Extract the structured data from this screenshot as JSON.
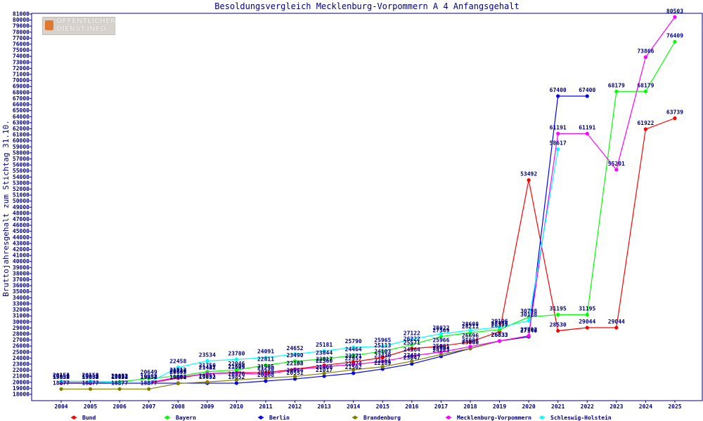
{
  "logo": {
    "line1": "ÖFFENTLICHER",
    "line2": "DIENST.INFO"
  },
  "chart_data": {
    "type": "line",
    "title": "Besoldungsvergleich Mecklenburg-Vorpommern A 4 Anfangsgehalt",
    "xlabel": "",
    "ylabel": "Bruttojahresgehalt zum Stichtag 31.10.",
    "categories": [
      "2004",
      "2005",
      "2006",
      "2007",
      "2008",
      "2009",
      "2010",
      "2011",
      "2012",
      "2013",
      "2014",
      "2015",
      "2016",
      "2017",
      "2018",
      "2019",
      "2020",
      "2021",
      "2022",
      "2023",
      "2024",
      "2025"
    ],
    "ylim": [
      18000,
      81000
    ],
    "ytick_step": 1000,
    "grid": false,
    "legend_position": "bottom",
    "series": [
      {
        "name": "Bund",
        "color": "#ff0000",
        "values": [
          19854,
          19854,
          19854,
          19854,
          20693,
          21442,
          21604,
          21595,
          22153,
          22817,
          23371,
          24103,
          25571,
          25966,
          26696,
          28377,
          53492,
          28530,
          29044,
          29044,
          61922,
          63739
        ]
      },
      {
        "name": "Bayern",
        "color": "#00ff00",
        "values": [
          20151,
          20151,
          20051,
          20649,
          21012,
          21750,
          22046,
          22811,
          23490,
          23844,
          24464,
          25113,
          26222,
          27569,
          28211,
          28716,
          30798,
          31195,
          31195,
          68179,
          68179,
          76409
        ]
      },
      {
        "name": "Berlin",
        "color": "#0000ff",
        "values": [
          19852,
          19852,
          19852,
          19852,
          19852,
          19852,
          19852,
          20208,
          20551,
          21017,
          21502,
          22189,
          23047,
          24283,
          25588,
          26833,
          27540,
          67400,
          67400,
          null,
          null,
          null
        ]
      },
      {
        "name": "Brandenburg",
        "color": "#808000",
        "values": [
          18877,
          18877,
          18877,
          18877,
          19804,
          20051,
          20376,
          20708,
          20954,
          21466,
          22074,
          22561,
          23484,
          24604,
          25609,
          26833,
          27702,
          null,
          null,
          null,
          null,
          null
        ]
      },
      {
        "name": "Mecklenburg-Vorpommern",
        "color": "#ff00ff",
        "values": [
          19937,
          19937,
          19937,
          19937,
          20830,
          21421,
          21529,
          21290,
          22108,
          22560,
          22957,
          23430,
          24364,
          25001,
          25908,
          26833,
          27702,
          61191,
          61191,
          55201,
          73866,
          80503
        ]
      },
      {
        "name": "Schleswig-Holstein",
        "color": "#00ffff",
        "values": [
          20154,
          20154,
          19937,
          19937,
          22458,
          23534,
          23780,
          24091,
          24652,
          25181,
          25790,
          25965,
          27122,
          28022,
          28608,
          29106,
          30188,
          58617,
          null,
          null,
          null,
          null
        ]
      }
    ],
    "data_labels": [
      {
        "series": "Bund",
        "values": [
          "19854",
          "19854",
          "19854",
          "19854",
          "20693",
          "21442",
          "21604",
          "21595",
          "22153",
          "22817",
          "23371",
          "24103",
          "25571",
          "25966",
          "26696",
          "28377",
          "53492",
          "28530",
          "29044",
          "29044",
          "61922",
          "63739"
        ]
      },
      {
        "series": "Bayern",
        "values": [
          "20151",
          "20151",
          "20051",
          "20649",
          "21012",
          "21750",
          "22046",
          "22811",
          "23490",
          "23844",
          "24464",
          "25113",
          "26222",
          "27569",
          "28211",
          "28716",
          "30798",
          "31195",
          "31195",
          "68179",
          "68179",
          "76409"
        ]
      },
      {
        "series": "Berlin",
        "values": [
          "19852",
          "19852",
          "19852",
          "19852",
          "19852",
          "19852",
          "19852",
          "20208",
          "20551",
          "21017",
          "21502",
          "22189",
          "23047",
          "24283",
          "25588",
          "26833",
          "27540",
          "67400",
          "67400",
          "",
          "",
          ""
        ]
      },
      {
        "series": "Brandenburg",
        "values": [
          "18877",
          "18877",
          "18877",
          "18877",
          "19804",
          "20051",
          "20376",
          "20708",
          "20954",
          "21466",
          "22074",
          "22561",
          "23484",
          "24604",
          "25609",
          "26833",
          "27702",
          "",
          "",
          "",
          "",
          ""
        ]
      },
      {
        "series": "Mecklenburg-Vorpommern",
        "values": [
          "19937",
          "19937",
          "19937",
          "19937",
          "20830",
          "21421",
          "21529",
          "21290",
          "22108",
          "22560",
          "22957",
          "23430",
          "24364",
          "25001",
          "25908",
          "26833",
          "27702",
          "61191",
          "61191",
          "55201",
          "73866",
          "80503"
        ]
      },
      {
        "series": "Schleswig-Holstein",
        "values": [
          "20154",
          "20154",
          "19937",
          "19937",
          "22458",
          "23534",
          "23780",
          "24091",
          "24652",
          "25181",
          "25790",
          "25965",
          "27122",
          "28022",
          "28608",
          "29106",
          "30188",
          "58617",
          "",
          "",
          "",
          ""
        ]
      }
    ]
  }
}
